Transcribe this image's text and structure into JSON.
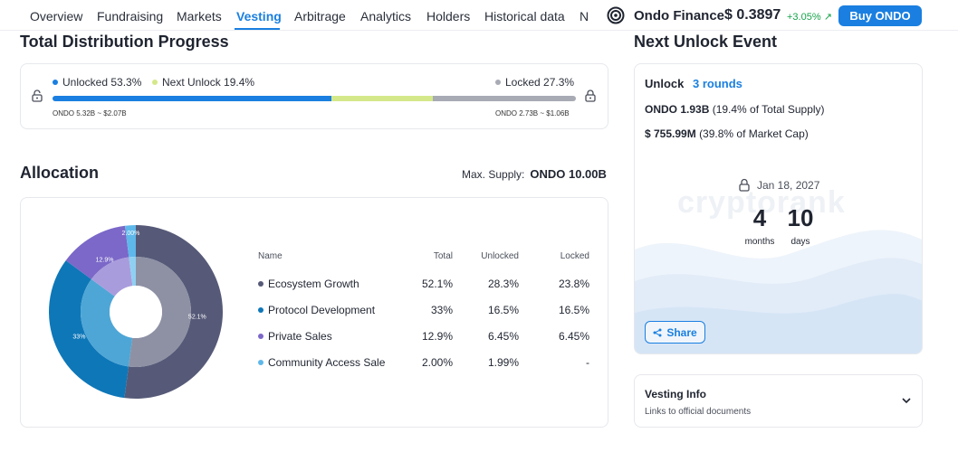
{
  "nav": {
    "tabs": [
      "Overview",
      "Fundraising",
      "Markets",
      "Vesting",
      "Arbitrage",
      "Analytics",
      "Holders",
      "Historical data",
      "N"
    ],
    "active_tab": "Vesting"
  },
  "coin": {
    "name": "Ondo Finance",
    "price": "$ 0.3897",
    "change": "+3.05%",
    "change_color": "#16a34a",
    "buy_label": "Buy ONDO"
  },
  "distribution": {
    "title": "Total Distribution Progress",
    "unlocked_label": "Unlocked 53.3%",
    "next_unlock_label": "Next Unlock 19.4%",
    "locked_label": "Locked 27.3%",
    "unlocked_pct": 53.3,
    "next_unlock_pct": 19.4,
    "locked_pct": 27.3,
    "unlocked_amount": "ONDO 5.32B ~ $2.07B",
    "locked_amount": "ONDO 2.73B ~ $1.06B",
    "colors": {
      "unlocked": "#1a7fe0",
      "next": "#d4e88a",
      "locked": "#a8abb4"
    }
  },
  "allocation": {
    "title": "Allocation",
    "max_supply_label": "Max. Supply:",
    "max_supply_value": "ONDO 10.00B",
    "columns": [
      "Name",
      "Total",
      "Unlocked",
      "Locked"
    ],
    "rows": [
      {
        "name": "Ecosystem Growth",
        "total": "52.1%",
        "unlocked": "28.3%",
        "locked": "23.8%",
        "color": "#565a78"
      },
      {
        "name": "Protocol Development",
        "total": "33%",
        "unlocked": "16.5%",
        "locked": "16.5%",
        "color": "#0e77b8"
      },
      {
        "name": "Private Sales",
        "total": "12.9%",
        "unlocked": "6.45%",
        "locked": "6.45%",
        "color": "#7b68c8"
      },
      {
        "name": "Community Access Sale",
        "total": "2.00%",
        "unlocked": "1.99%",
        "locked": "-",
        "color": "#5eb8ea"
      }
    ]
  },
  "chart_data": {
    "type": "pie",
    "categories": [
      "Ecosystem Growth",
      "Protocol Development",
      "Private Sales",
      "Community Access Sale"
    ],
    "values": [
      52.1,
      33,
      12.9,
      2.0
    ],
    "data_labels": [
      "52.1%",
      "33%",
      "12.9%",
      "2.00%"
    ],
    "colors": [
      "#565a78",
      "#0e77b8",
      "#7b68c8",
      "#5eb8ea"
    ],
    "inner_colors": [
      "#8e91a4",
      "#4ea6d6",
      "#a99cdc",
      "#8fd0f2"
    ]
  },
  "next_unlock": {
    "title": "Next Unlock Event",
    "unlock_label": "Unlock",
    "rounds": "3 rounds",
    "ondo_amount": "ONDO 1.93B",
    "ondo_detail": "(19.4% of Total Supply)",
    "usd_amount": "$ 755.99M",
    "usd_detail": "(39.8% of Market Cap)",
    "date": "Jan 18, 2027",
    "months_value": "4",
    "months_label": "months",
    "days_value": "10",
    "days_label": "days",
    "share_label": "Share",
    "watermark": "cryptorank"
  },
  "vesting_info": {
    "title": "Vesting Info",
    "subtitle": "Links to official documents"
  }
}
